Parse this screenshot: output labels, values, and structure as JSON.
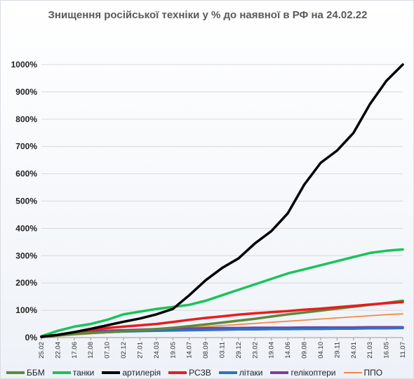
{
  "chart_data": {
    "type": "line",
    "title": "Знищення російської техніки у % до наявної в РФ на 24.02.22",
    "xlabel": "",
    "ylabel": "",
    "ylim": [
      0,
      1000
    ],
    "y_ticks": [
      "0%",
      "100%",
      "200%",
      "300%",
      "400%",
      "500%",
      "600%",
      "700%",
      "800%",
      "900%",
      "1000%"
    ],
    "x_labels": [
      "25.02",
      "22.04",
      "17.06",
      "12.08",
      "07.10",
      "02.12",
      "27.01",
      "24.03",
      "19.05",
      "14.07",
      "08.09",
      "03.11",
      "29.12",
      "23.02",
      "19.04",
      "14.06",
      "09.08",
      "04.10",
      "29.11",
      "24.01",
      "21.03",
      "16.05",
      "11.07"
    ],
    "grid": "horizontal",
    "legend_position": "bottom",
    "series": [
      {
        "name": "ББМ",
        "color": "#5c8a3a",
        "width": 3.5,
        "values": [
          3,
          8,
          13,
          17,
          20,
          23,
          27,
          31,
          36,
          42,
          48,
          55,
          62,
          69,
          77,
          85,
          92,
          99,
          106,
          113,
          120,
          127,
          135
        ]
      },
      {
        "name": "танки",
        "color": "#19c35a",
        "width": 3.5,
        "values": [
          5,
          25,
          40,
          50,
          65,
          85,
          95,
          105,
          112,
          120,
          135,
          155,
          175,
          195,
          215,
          235,
          250,
          265,
          280,
          295,
          310,
          318,
          323
        ]
      },
      {
        "name": "артилерія",
        "color": "#000000",
        "width": 3.5,
        "values": [
          3,
          10,
          20,
          32,
          45,
          58,
          70,
          85,
          105,
          155,
          210,
          255,
          290,
          345,
          390,
          455,
          560,
          640,
          685,
          750,
          855,
          940,
          1000
        ]
      },
      {
        "name": "РСЗВ",
        "color": "#e81d1d",
        "width": 3.5,
        "values": [
          2,
          10,
          20,
          28,
          35,
          40,
          45,
          50,
          57,
          65,
          72,
          78,
          84,
          89,
          93,
          97,
          102,
          106,
          111,
          116,
          121,
          126,
          130
        ]
      },
      {
        "name": "літаки",
        "color": "#2a74c8",
        "width": 3.5,
        "values": [
          2,
          8,
          14,
          18,
          20,
          22,
          24,
          25,
          26,
          27,
          28,
          29,
          30,
          30,
          31,
          31,
          32,
          32,
          33,
          33,
          34,
          34,
          35
        ]
      },
      {
        "name": "гелікоптери",
        "color": "#7d3ca0",
        "width": 3.5,
        "values": [
          3,
          10,
          18,
          22,
          25,
          27,
          29,
          31,
          32,
          33,
          34,
          35,
          35,
          36,
          36,
          36,
          37,
          37,
          37,
          37,
          38,
          38,
          38
        ]
      },
      {
        "name": "ППО",
        "color": "#f08c45",
        "width": 1.8,
        "values": [
          1,
          5,
          10,
          14,
          18,
          22,
          26,
          30,
          33,
          36,
          40,
          44,
          48,
          52,
          56,
          60,
          64,
          68,
          72,
          76,
          80,
          84,
          87
        ]
      }
    ]
  }
}
